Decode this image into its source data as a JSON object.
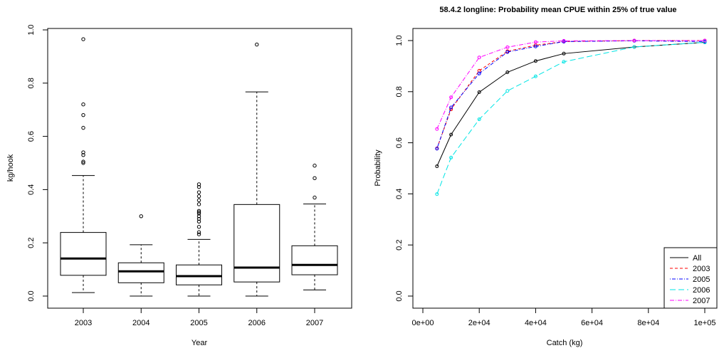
{
  "chart_data": [
    {
      "type": "boxplot",
      "title": "",
      "xlabel": "Year",
      "ylabel": "kg/hook",
      "ylim": [
        0.0,
        1.0
      ],
      "yticks": [
        "0.0",
        "0.2",
        "0.4",
        "0.6",
        "0.8",
        "1.0"
      ],
      "categories": [
        "2003",
        "2004",
        "2005",
        "2006",
        "2007"
      ],
      "boxes": [
        {
          "name": "2003",
          "lower_whisker": 0.013,
          "q1": 0.078,
          "median": 0.141,
          "q3": 0.239,
          "upper_whisker": 0.453,
          "outliers": [
            0.5,
            0.505,
            0.53,
            0.54,
            0.632,
            0.68,
            0.72,
            0.965
          ]
        },
        {
          "name": "2004",
          "lower_whisker": 0.0,
          "q1": 0.05,
          "median": 0.093,
          "q3": 0.125,
          "upper_whisker": 0.193,
          "outliers": [
            0.3
          ]
        },
        {
          "name": "2005",
          "lower_whisker": 0.0,
          "q1": 0.042,
          "median": 0.075,
          "q3": 0.117,
          "upper_whisker": 0.213,
          "outliers": [
            0.232,
            0.24,
            0.26,
            0.28,
            0.29,
            0.3,
            0.31,
            0.315,
            0.32,
            0.345,
            0.36,
            0.375,
            0.39,
            0.41,
            0.42
          ]
        },
        {
          "name": "2006",
          "lower_whisker": 0.0,
          "q1": 0.053,
          "median": 0.107,
          "q3": 0.344,
          "upper_whisker": 0.767,
          "outliers": [
            0.945
          ]
        },
        {
          "name": "2007",
          "lower_whisker": 0.023,
          "q1": 0.08,
          "median": 0.117,
          "q3": 0.189,
          "upper_whisker": 0.346,
          "outliers": [
            0.37,
            0.443,
            0.49
          ]
        }
      ]
    },
    {
      "type": "line",
      "title": "58.4.2 longline: Probability mean CPUE within 25% of true value",
      "xlabel": "Catch (kg)",
      "ylabel": "Probability",
      "xlim": [
        0,
        100000
      ],
      "ylim": [
        0.0,
        1.0
      ],
      "xticks": [
        0,
        20000,
        40000,
        60000,
        80000,
        100000
      ],
      "xtick_labels": [
        "0e+00",
        "2e+04",
        "4e+04",
        "6e+04",
        "8e+04",
        "1e+05"
      ],
      "yticks": [
        "0.0",
        "0.2",
        "0.4",
        "0.6",
        "0.8",
        "1.0"
      ],
      "x": [
        5000,
        10000,
        20000,
        30000,
        40000,
        50000,
        75000,
        100000
      ],
      "legend_position": "bottom-right",
      "series": [
        {
          "name": "All",
          "color": "#000000",
          "dash": "",
          "values": [
            0.508,
            0.632,
            0.798,
            0.876,
            0.92,
            0.949,
            0.975,
            0.993
          ]
        },
        {
          "name": "2003",
          "color": "#ff0000",
          "dash": "4,3",
          "values": [
            0.578,
            0.731,
            0.882,
            0.958,
            0.982,
            0.996,
            1.0,
            1.0
          ]
        },
        {
          "name": "2005",
          "color": "#0000ff",
          "dash": "1,2,5,2",
          "values": [
            0.577,
            0.738,
            0.871,
            0.955,
            0.977,
            0.996,
            0.999,
            0.996
          ]
        },
        {
          "name": "2006",
          "color": "#00e5e5",
          "dash": "8,4",
          "values": [
            0.399,
            0.542,
            0.692,
            0.803,
            0.86,
            0.917,
            0.975,
            0.993
          ]
        },
        {
          "name": "2007",
          "color": "#ff00ff",
          "dash": "6,2,1,2",
          "values": [
            0.654,
            0.778,
            0.934,
            0.974,
            0.994,
            0.999,
            1.0,
            1.0
          ]
        }
      ]
    }
  ]
}
